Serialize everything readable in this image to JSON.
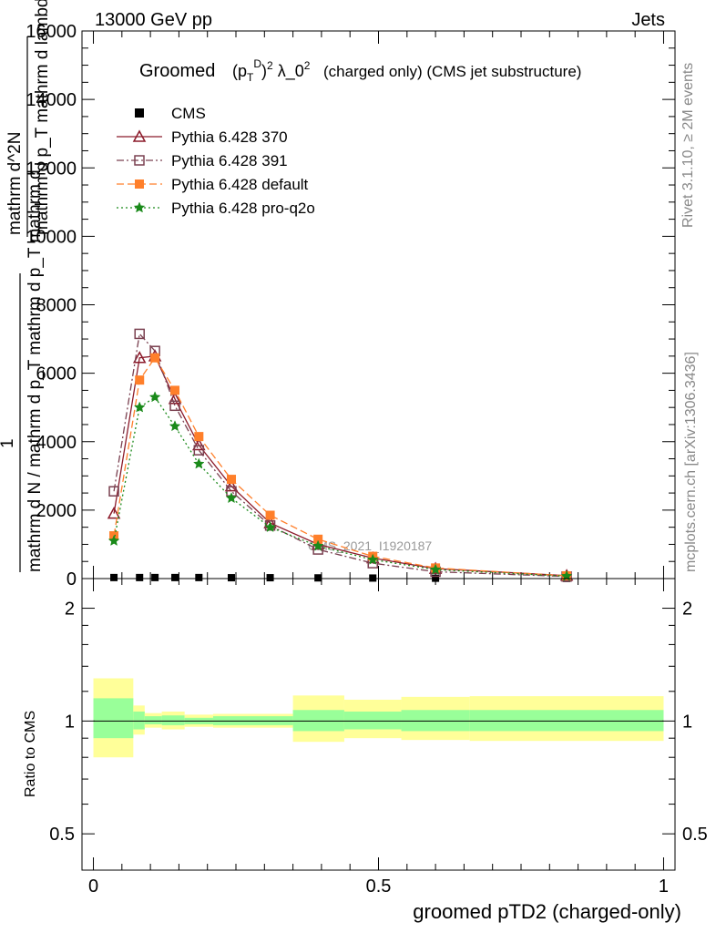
{
  "header": {
    "left": "13000 GeV pp",
    "right": "Jets"
  },
  "side_labels": {
    "rivet": "Rivet 3.1.10, ≥ 2M events",
    "mcplots": "mcplots.cern.ch [arXiv:1306.3436]"
  },
  "watermark": "CMS_2021_I1920187",
  "chart_data": [
    {
      "type": "line",
      "title": "(charged only) (CMS jet substructure)",
      "title_prefix": "Groomed",
      "title_math": "(p_T^D)^2 λ_0^2",
      "ylabel": "1 / mathrm d N / mathrm d p_T mathrm d^2N / mathrm d p_T mathrm d lambda",
      "ylabel_top": "mathrm d^2N",
      "ylabel_bottom": "mathrm d N / mathrm d p_T mathrm d p_T mathrm d lambda",
      "ylabel_one": "1",
      "xlim": [
        -0.02,
        1.02
      ],
      "ylim": [
        0,
        16000
      ],
      "y_ticks": [
        0,
        2000,
        4000,
        6000,
        8000,
        10000,
        12000,
        14000,
        16000
      ],
      "y_tick_labels": [
        "0",
        "2000",
        "4000",
        "6000",
        "8000",
        "10000",
        "12000",
        "14000",
        "16000"
      ],
      "x": [
        0.036,
        0.081,
        0.108,
        0.143,
        0.185,
        0.242,
        0.31,
        0.394,
        0.49,
        0.6,
        0.83
      ],
      "series": [
        {
          "name": "CMS",
          "color": "#000000",
          "marker": "square-filled",
          "values": [
            30,
            30,
            30,
            30,
            30,
            25,
            25,
            20,
            15,
            10,
            5
          ]
        },
        {
          "name": "Pythia 6.428 370",
          "color": "#8b1a2a",
          "marker": "triangle-open",
          "dash": "solid",
          "values": [
            1900,
            6450,
            6500,
            5250,
            3900,
            2700,
            1620,
            1000,
            600,
            290,
            85
          ]
        },
        {
          "name": "Pythia 6.428 391",
          "color": "#7a4050",
          "marker": "square-open",
          "dash": "dashdot",
          "values": [
            2550,
            7150,
            6650,
            5050,
            3750,
            2550,
            1550,
            850,
            450,
            200,
            60
          ]
        },
        {
          "name": "Pythia 6.428 default",
          "color": "#ff7f2a",
          "marker": "square-filled",
          "dash": "dashed",
          "values": [
            1250,
            5800,
            6450,
            5500,
            4150,
            2900,
            1850,
            1150,
            650,
            310,
            80
          ]
        },
        {
          "name": "Pythia 6.428 pro-q2o",
          "color": "#1a8a1a",
          "marker": "star",
          "dash": "dotted",
          "values": [
            1100,
            5000,
            5300,
            4450,
            3350,
            2350,
            1500,
            950,
            550,
            260,
            70
          ]
        }
      ]
    },
    {
      "type": "area",
      "ylabel": "Ratio to CMS",
      "xlabel": "groomed pTD2 (charged-only)",
      "xlim": [
        -0.02,
        1.02
      ],
      "ylim": [
        0.4,
        2.4
      ],
      "log_y": true,
      "x_ticks": [
        0,
        0.5,
        1
      ],
      "x_tick_labels": [
        "0",
        "0.5",
        "1"
      ],
      "y_ticks": [
        0.5,
        1,
        2
      ],
      "y_tick_labels": [
        "0.5",
        "1",
        "2"
      ],
      "reference": 1,
      "bins": [
        {
          "x0": 0.0,
          "x1": 0.07,
          "stat": [
            0.9,
            1.15
          ],
          "total": [
            0.8,
            1.3
          ]
        },
        {
          "x0": 0.07,
          "x1": 0.09,
          "stat": [
            0.95,
            1.06
          ],
          "total": [
            0.92,
            1.1
          ]
        },
        {
          "x0": 0.09,
          "x1": 0.12,
          "stat": [
            0.98,
            1.03
          ],
          "total": [
            0.96,
            1.05
          ]
        },
        {
          "x0": 0.12,
          "x1": 0.16,
          "stat": [
            0.975,
            1.035
          ],
          "total": [
            0.95,
            1.06
          ]
        },
        {
          "x0": 0.16,
          "x1": 0.21,
          "stat": [
            0.98,
            1.02
          ],
          "total": [
            0.965,
            1.04
          ]
        },
        {
          "x0": 0.21,
          "x1": 0.35,
          "stat": [
            0.975,
            1.03
          ],
          "total": [
            0.96,
            1.045
          ]
        },
        {
          "x0": 0.35,
          "x1": 0.44,
          "stat": [
            0.94,
            1.07
          ],
          "total": [
            0.88,
            1.17
          ]
        },
        {
          "x0": 0.44,
          "x1": 0.54,
          "stat": [
            0.95,
            1.06
          ],
          "total": [
            0.9,
            1.14
          ]
        },
        {
          "x0": 0.54,
          "x1": 0.66,
          "stat": [
            0.94,
            1.07
          ],
          "total": [
            0.89,
            1.16
          ]
        },
        {
          "x0": 0.66,
          "x1": 1.0,
          "stat": [
            0.94,
            1.07
          ],
          "total": [
            0.885,
            1.165
          ]
        }
      ],
      "band_colors": {
        "stat": "#99ff99",
        "total": "#ffff99"
      }
    }
  ]
}
